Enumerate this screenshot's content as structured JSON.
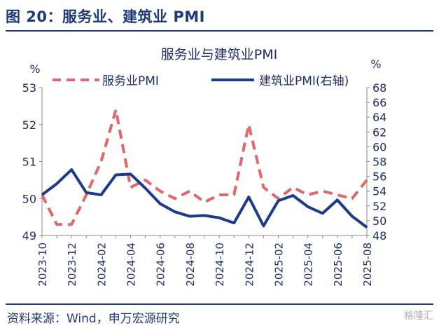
{
  "header": {
    "figure_title": "图 20：服务业、建筑业 PMI"
  },
  "footer": {
    "source": "资料来源：Wind，申万宏源研究",
    "watermark": "格隆汇"
  },
  "colors": {
    "services": "#e0676b",
    "construction": "#1f3a8a",
    "title_blue": "#1f3a7a"
  },
  "chart_data": {
    "type": "line",
    "title": "服务业与建筑业PMI",
    "left_unit": "%",
    "right_unit": "%",
    "x": [
      "2023-10",
      "2023-11",
      "2023-12",
      "2024-01",
      "2024-02",
      "2024-03",
      "2024-04",
      "2024-05",
      "2024-06",
      "2024-07",
      "2024-08",
      "2024-09",
      "2024-10",
      "2024-11",
      "2024-12",
      "2025-01",
      "2025-02",
      "2025-03",
      "2025-04",
      "2025-05",
      "2025-06",
      "2025-07",
      "2025-08"
    ],
    "x_tick_labels": [
      "2023-10",
      "2023-12",
      "2024-02",
      "2024-04",
      "2024-06",
      "2024-08",
      "2024-10",
      "2024-12",
      "2025-02",
      "2025-04",
      "2025-06",
      "2025-08"
    ],
    "y_left": {
      "min": 49,
      "max": 53,
      "ticks": [
        49,
        50,
        51,
        52,
        53
      ]
    },
    "y_right": {
      "min": 48,
      "max": 68,
      "ticks": [
        48,
        50,
        52,
        54,
        56,
        58,
        60,
        62,
        64,
        66,
        68
      ]
    },
    "series": [
      {
        "name": "服务业PMI",
        "axis": "left",
        "style": "dashed",
        "values": [
          50.1,
          49.3,
          49.3,
          50.1,
          51.0,
          52.4,
          50.3,
          50.5,
          50.2,
          50.0,
          50.2,
          49.9,
          50.1,
          50.1,
          52.0,
          50.3,
          50.0,
          50.3,
          50.1,
          50.2,
          50.1,
          50.0,
          50.5
        ]
      },
      {
        "name": "建筑业PMI(右轴)",
        "axis": "right",
        "style": "solid",
        "values": [
          53.5,
          55.0,
          56.9,
          53.8,
          53.5,
          56.2,
          56.3,
          54.4,
          52.3,
          51.2,
          50.6,
          50.7,
          50.4,
          49.7,
          53.2,
          49.3,
          52.7,
          53.4,
          51.9,
          51.0,
          52.8,
          50.6,
          49.1
        ]
      }
    ],
    "legend_position": "top"
  }
}
